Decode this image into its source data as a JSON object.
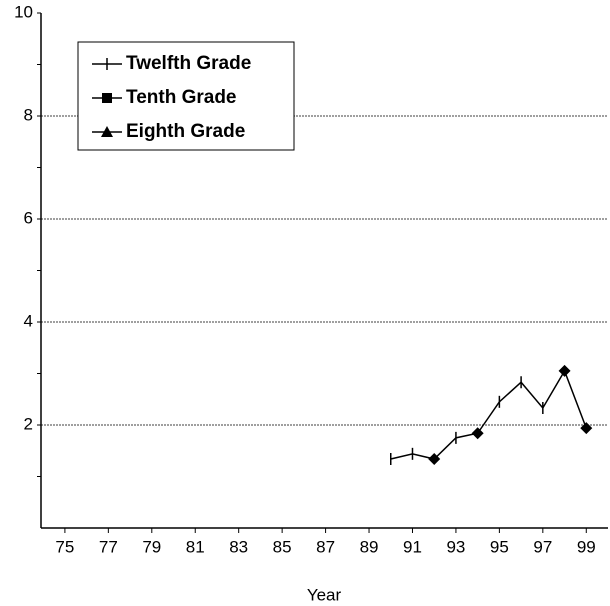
{
  "chart_data": {
    "type": "line",
    "xlabel": "Year",
    "x": [
      90,
      91,
      92,
      93,
      94,
      95,
      96,
      97,
      98,
      99
    ],
    "series": [
      {
        "name": "Twelfth Grade",
        "color": "#000000",
        "marker": "plus",
        "values": [
          1.34,
          1.44,
          1.34,
          1.75,
          1.84,
          2.45,
          2.83,
          2.33,
          3.05,
          1.94
        ],
        "point_markers": [
          "tick",
          "tick",
          "diamond",
          "tick",
          "diamond",
          "tick",
          "tick",
          "tick",
          "diamond",
          "diamond"
        ]
      },
      {
        "name": "Tenth Grade",
        "color": "#000000",
        "marker": "square",
        "values": [
          null,
          null,
          null,
          null,
          null,
          null,
          null,
          null,
          null,
          null
        ]
      },
      {
        "name": "Eighth Grade",
        "color": "#000000",
        "marker": "triangle",
        "values": [
          null,
          null,
          null,
          null,
          null,
          null,
          null,
          null,
          null,
          null
        ]
      }
    ],
    "xlim": [
      73.9,
      100
    ],
    "xticks": [
      75,
      77,
      79,
      81,
      83,
      85,
      87,
      89,
      91,
      93,
      95,
      97,
      99
    ],
    "ylim": [
      0,
      10
    ],
    "yticks": [
      2,
      4,
      6,
      8,
      10
    ],
    "yminor": [
      1,
      3,
      5,
      7,
      9
    ],
    "grid": true,
    "legend": "upper left"
  }
}
